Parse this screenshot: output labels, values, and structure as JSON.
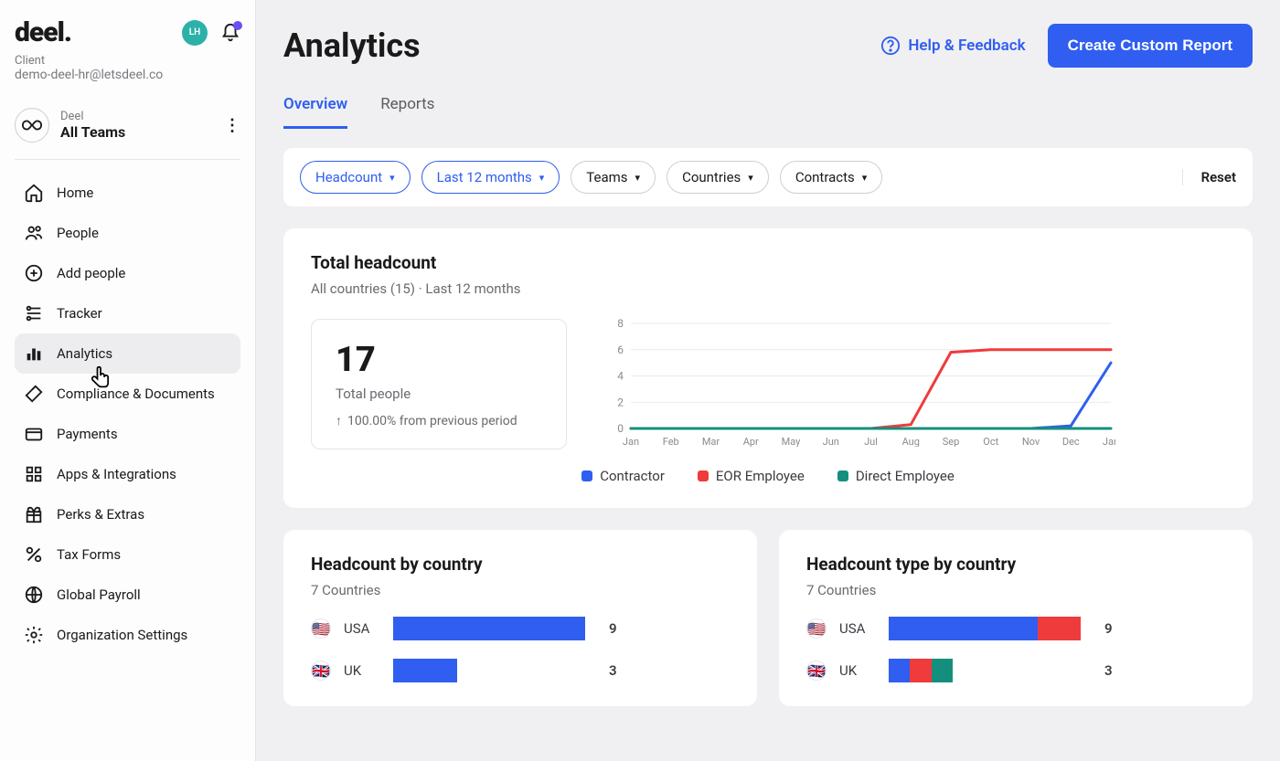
{
  "brand": {
    "logo": "deel.",
    "avatar_initials": "LH"
  },
  "client": {
    "label": "Client",
    "email": "demo-deel-hr@letsdeel.co"
  },
  "team": {
    "org": "Deel",
    "name": "All Teams"
  },
  "nav": [
    {
      "label": "Home",
      "icon": "home"
    },
    {
      "label": "People",
      "icon": "people"
    },
    {
      "label": "Add people",
      "icon": "plus-circle"
    },
    {
      "label": "Tracker",
      "icon": "tracker"
    },
    {
      "label": "Analytics",
      "icon": "bars",
      "active": true
    },
    {
      "label": "Compliance & Documents",
      "icon": "compliance"
    },
    {
      "label": "Payments",
      "icon": "card"
    },
    {
      "label": "Apps & Integrations",
      "icon": "apps"
    },
    {
      "label": "Perks & Extras",
      "icon": "gift"
    },
    {
      "label": "Tax Forms",
      "icon": "percent"
    },
    {
      "label": "Global Payroll",
      "icon": "globe"
    },
    {
      "label": "Organization Settings",
      "icon": "gear"
    }
  ],
  "page": {
    "title": "Analytics",
    "help": "Help & Feedback",
    "cta": "Create Custom Report",
    "tabs": [
      {
        "label": "Overview",
        "active": true
      },
      {
        "label": "Reports",
        "active": false
      }
    ],
    "reset": "Reset",
    "filters": [
      {
        "label": "Headcount",
        "selected": true
      },
      {
        "label": "Last 12 months",
        "selected": true
      },
      {
        "label": "Teams",
        "selected": false
      },
      {
        "label": "Countries",
        "selected": false
      },
      {
        "label": "Contracts",
        "selected": false
      }
    ]
  },
  "headcount_card": {
    "title": "Total headcount",
    "subtitle": "All countries (15) · Last 12 months",
    "stat_value": "17",
    "stat_label": "Total people",
    "stat_change": "100.00% from previous period",
    "chart": {
      "type": "line",
      "months": [
        "Jan",
        "Feb",
        "Mar",
        "Apr",
        "May",
        "Jun",
        "Jul",
        "Aug",
        "Sep",
        "Oct",
        "Nov",
        "Dec",
        "Jan"
      ],
      "ylim": [
        0,
        8
      ],
      "ytick_step": 2,
      "grid_color": "#e9e9ec",
      "series": [
        {
          "name": "Contractor",
          "color": "#2f5ef0",
          "values": [
            0,
            0,
            0,
            0,
            0,
            0,
            0,
            0,
            0,
            0,
            0,
            0.2,
            5
          ]
        },
        {
          "name": "EOR Employee",
          "color": "#ef3b3b",
          "values": [
            0,
            0,
            0,
            0,
            0,
            0,
            0,
            0.3,
            5.8,
            6,
            6,
            6,
            6
          ]
        },
        {
          "name": "Direct Employee",
          "color": "#158f7d",
          "values": [
            0,
            0,
            0,
            0,
            0,
            0,
            0,
            0,
            0,
            0,
            0,
            0,
            0
          ]
        }
      ]
    },
    "legend": [
      {
        "label": "Contractor",
        "color": "#2f5ef0"
      },
      {
        "label": "EOR Employee",
        "color": "#ef3b3b"
      },
      {
        "label": "Direct Employee",
        "color": "#158f7d"
      }
    ]
  },
  "country_card": {
    "title": "Headcount by country",
    "subtitle": "7 Countries",
    "max": 9,
    "rows": [
      {
        "flag": "🇺🇸",
        "name": "USA",
        "value": 9,
        "segments": [
          {
            "color": "#2f5ef0",
            "value": 9
          }
        ]
      },
      {
        "flag": "🇬🇧",
        "name": "UK",
        "value": 3,
        "segments": [
          {
            "color": "#2f5ef0",
            "value": 3
          }
        ]
      }
    ]
  },
  "type_card": {
    "title": "Headcount type by country",
    "subtitle": "7 Countries",
    "max": 9,
    "rows": [
      {
        "flag": "🇺🇸",
        "name": "USA",
        "value": 9,
        "segments": [
          {
            "color": "#2f5ef0",
            "value": 7
          },
          {
            "color": "#ef3b3b",
            "value": 2
          }
        ]
      },
      {
        "flag": "🇬🇧",
        "name": "UK",
        "value": 3,
        "segments": [
          {
            "color": "#2f5ef0",
            "value": 1
          },
          {
            "color": "#ef3b3b",
            "value": 1
          },
          {
            "color": "#158f7d",
            "value": 1
          }
        ]
      }
    ]
  },
  "colors": {
    "primary": "#2f5ef0",
    "bg": "#f0f0f2",
    "card": "#ffffff"
  }
}
